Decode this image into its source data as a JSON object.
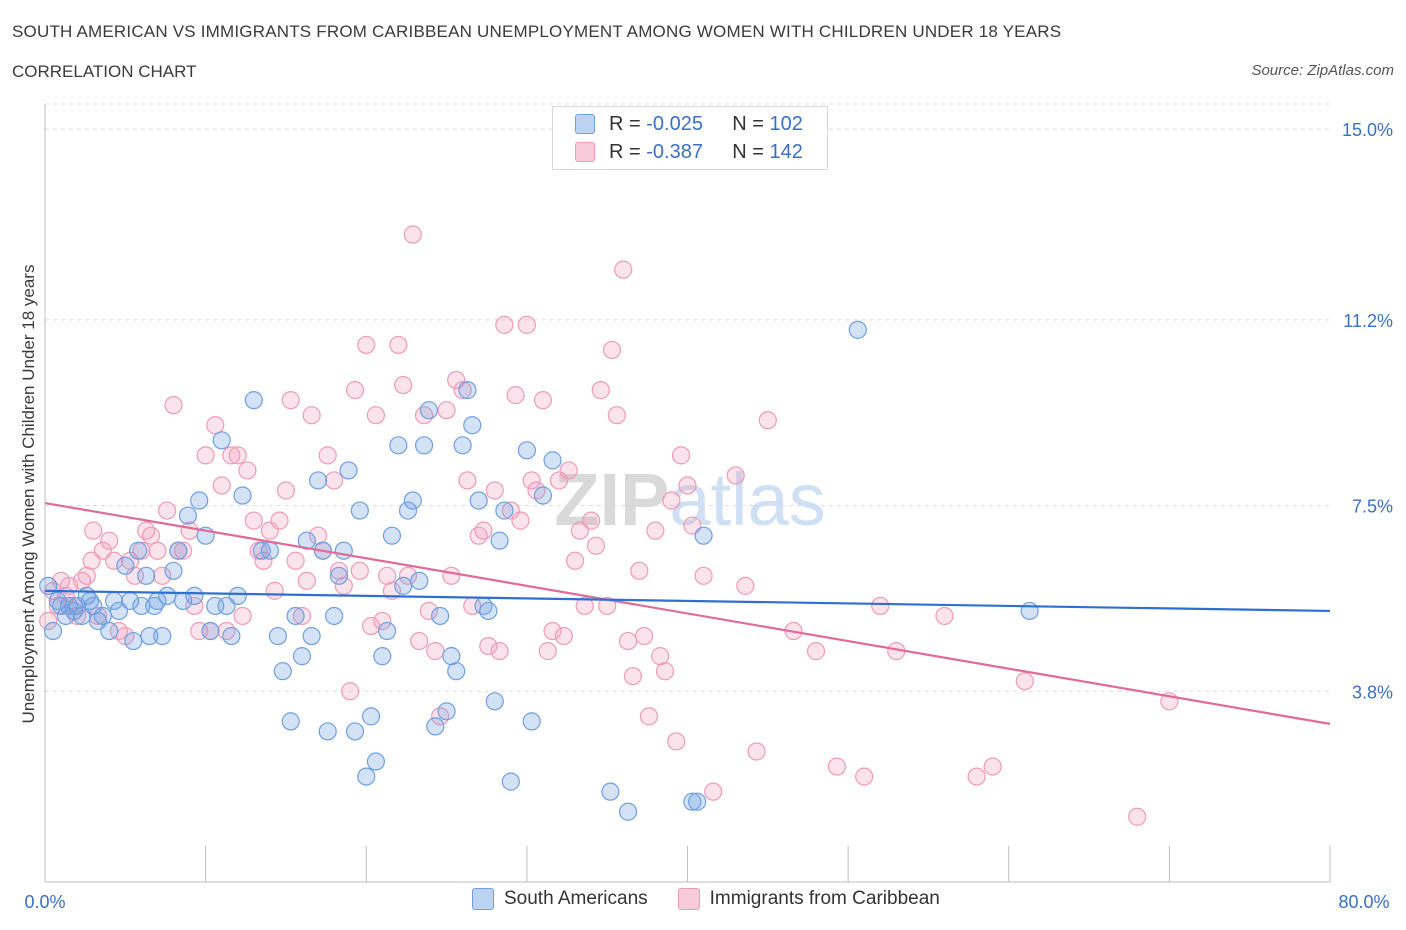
{
  "title": "SOUTH AMERICAN VS IMMIGRANTS FROM CARIBBEAN UNEMPLOYMENT AMONG WOMEN WITH CHILDREN UNDER 18 YEARS",
  "subtitle": "CORRELATION CHART",
  "source": "Source: ZipAtlas.com",
  "watermark": "ZIPatlas",
  "legend": {
    "rows": [
      {
        "r_label": "R =",
        "r_value": "-0.025",
        "n_label": "N =",
        "n_value": "102",
        "color": "#6f9fe0"
      },
      {
        "r_label": "R =",
        "r_value": "-0.387",
        "n_label": "N =",
        "n_value": "142",
        "color": "#ef9ab8"
      }
    ]
  },
  "bottom_legend": [
    "South Americans",
    "Immigrants from Caribbean"
  ],
  "chart_data": {
    "type": "scatter",
    "xlabel": "",
    "ylabel": "Unemployment Among Women with Children Under 18 years",
    "xlim": [
      0,
      80
    ],
    "ylim": [
      0,
      15.5
    ],
    "x_tick_labels": [
      "0.0%",
      "80.0%"
    ],
    "y_ticks": [
      3.8,
      7.5,
      11.2,
      15.0
    ],
    "y_tick_labels": [
      "3.8%",
      "7.5%",
      "11.2%",
      "15.0%"
    ],
    "grid": true,
    "colors": {
      "blue": "#6f9fe0",
      "pink": "#ef9ab8",
      "blue_line": "#2e6fcf",
      "pink_line": "#e06a9a",
      "tick_text": "#3a6fc4"
    },
    "series": [
      {
        "name": "South Americans",
        "color": "#6f9fe0",
        "trend": {
          "x": [
            0,
            80
          ],
          "y": [
            5.8,
            5.4
          ]
        },
        "points": [
          [
            0.2,
            5.9
          ],
          [
            0.5,
            5.0
          ],
          [
            0.8,
            5.6
          ],
          [
            1.0,
            5.5
          ],
          [
            1.3,
            5.3
          ],
          [
            1.5,
            5.5
          ],
          [
            1.8,
            5.4
          ],
          [
            2.0,
            5.5
          ],
          [
            2.3,
            5.3
          ],
          [
            2.6,
            5.7
          ],
          [
            2.8,
            5.6
          ],
          [
            3.0,
            5.5
          ],
          [
            3.3,
            5.2
          ],
          [
            3.6,
            5.3
          ],
          [
            4.0,
            5.0
          ],
          [
            4.3,
            5.6
          ],
          [
            4.6,
            5.4
          ],
          [
            5.0,
            6.3
          ],
          [
            5.3,
            5.6
          ],
          [
            5.5,
            4.8
          ],
          [
            5.8,
            6.6
          ],
          [
            6.0,
            5.5
          ],
          [
            6.3,
            6.1
          ],
          [
            6.5,
            4.9
          ],
          [
            6.8,
            5.5
          ],
          [
            7.0,
            5.6
          ],
          [
            7.3,
            4.9
          ],
          [
            7.6,
            5.7
          ],
          [
            8.0,
            6.2
          ],
          [
            8.3,
            6.6
          ],
          [
            8.6,
            5.6
          ],
          [
            8.9,
            7.3
          ],
          [
            9.3,
            5.7
          ],
          [
            9.6,
            7.6
          ],
          [
            10.0,
            6.9
          ],
          [
            10.3,
            5.0
          ],
          [
            10.6,
            5.5
          ],
          [
            11.0,
            8.8
          ],
          [
            11.3,
            5.5
          ],
          [
            11.6,
            4.9
          ],
          [
            12.0,
            5.7
          ],
          [
            12.3,
            7.7
          ],
          [
            13.0,
            9.6
          ],
          [
            13.5,
            6.6
          ],
          [
            14.0,
            6.6
          ],
          [
            14.5,
            4.9
          ],
          [
            14.8,
            4.2
          ],
          [
            15.3,
            3.2
          ],
          [
            15.6,
            5.3
          ],
          [
            16.0,
            4.5
          ],
          [
            16.3,
            6.8
          ],
          [
            16.6,
            4.9
          ],
          [
            17.0,
            8.0
          ],
          [
            17.3,
            6.6
          ],
          [
            17.6,
            3.0
          ],
          [
            18.0,
            5.3
          ],
          [
            18.3,
            6.1
          ],
          [
            18.6,
            6.6
          ],
          [
            18.9,
            8.2
          ],
          [
            19.3,
            3.0
          ],
          [
            19.6,
            7.4
          ],
          [
            20.0,
            2.1
          ],
          [
            20.3,
            3.3
          ],
          [
            20.6,
            2.4
          ],
          [
            21.0,
            4.5
          ],
          [
            21.3,
            5.0
          ],
          [
            21.6,
            6.9
          ],
          [
            22.0,
            8.7
          ],
          [
            22.3,
            5.9
          ],
          [
            22.6,
            7.4
          ],
          [
            22.9,
            7.6
          ],
          [
            23.3,
            6.0
          ],
          [
            23.6,
            8.7
          ],
          [
            23.9,
            9.4
          ],
          [
            24.3,
            3.1
          ],
          [
            24.6,
            5.3
          ],
          [
            25.0,
            3.4
          ],
          [
            25.3,
            4.5
          ],
          [
            25.6,
            4.2
          ],
          [
            26.0,
            8.7
          ],
          [
            26.3,
            9.8
          ],
          [
            26.6,
            9.1
          ],
          [
            27.0,
            7.6
          ],
          [
            27.3,
            5.5
          ],
          [
            27.6,
            5.4
          ],
          [
            28.0,
            3.6
          ],
          [
            28.3,
            6.8
          ],
          [
            28.6,
            7.4
          ],
          [
            29.0,
            2.0
          ],
          [
            30.0,
            8.6
          ],
          [
            30.3,
            3.2
          ],
          [
            31.0,
            7.7
          ],
          [
            31.6,
            8.4
          ],
          [
            35.2,
            1.8
          ],
          [
            36.3,
            1.4
          ],
          [
            40.3,
            1.6
          ],
          [
            40.6,
            1.6
          ],
          [
            41.0,
            6.9
          ],
          [
            50.6,
            11.0
          ],
          [
            61.3,
            5.4
          ]
        ]
      },
      {
        "name": "Immigrants from Caribbean",
        "color": "#ef9ab8",
        "trend": {
          "x": [
            0,
            80
          ],
          "y": [
            7.55,
            3.15
          ]
        },
        "points": [
          [
            0.2,
            5.2
          ],
          [
            0.5,
            5.8
          ],
          [
            0.8,
            5.5
          ],
          [
            1.0,
            6.0
          ],
          [
            1.3,
            5.7
          ],
          [
            1.5,
            5.9
          ],
          [
            1.8,
            5.5
          ],
          [
            2.0,
            5.3
          ],
          [
            2.3,
            6.0
          ],
          [
            2.6,
            6.1
          ],
          [
            2.9,
            6.4
          ],
          [
            3.0,
            7.0
          ],
          [
            3.3,
            5.3
          ],
          [
            3.6,
            6.6
          ],
          [
            4.0,
            6.8
          ],
          [
            4.3,
            6.4
          ],
          [
            4.6,
            5.0
          ],
          [
            5.0,
            4.9
          ],
          [
            5.3,
            6.4
          ],
          [
            5.6,
            6.1
          ],
          [
            6.0,
            6.6
          ],
          [
            6.3,
            7.0
          ],
          [
            6.6,
            6.9
          ],
          [
            7.0,
            6.6
          ],
          [
            7.3,
            6.1
          ],
          [
            7.6,
            7.4
          ],
          [
            8.0,
            9.5
          ],
          [
            8.3,
            6.6
          ],
          [
            8.6,
            6.6
          ],
          [
            9.0,
            7.0
          ],
          [
            9.3,
            5.5
          ],
          [
            9.6,
            5.0
          ],
          [
            10.0,
            8.5
          ],
          [
            10.3,
            5.0
          ],
          [
            10.6,
            9.1
          ],
          [
            11.0,
            7.9
          ],
          [
            11.3,
            5.0
          ],
          [
            11.6,
            8.5
          ],
          [
            12.0,
            8.5
          ],
          [
            12.3,
            5.3
          ],
          [
            12.6,
            8.2
          ],
          [
            13.0,
            7.2
          ],
          [
            13.3,
            6.6
          ],
          [
            13.6,
            6.4
          ],
          [
            14.0,
            7.0
          ],
          [
            14.3,
            5.8
          ],
          [
            14.6,
            7.2
          ],
          [
            15.0,
            7.8
          ],
          [
            15.3,
            9.6
          ],
          [
            15.6,
            6.4
          ],
          [
            16.0,
            5.3
          ],
          [
            16.3,
            6.0
          ],
          [
            16.6,
            9.3
          ],
          [
            17.0,
            6.9
          ],
          [
            17.3,
            6.6
          ],
          [
            17.6,
            8.5
          ],
          [
            18.0,
            8.0
          ],
          [
            18.3,
            6.2
          ],
          [
            18.6,
            5.9
          ],
          [
            19.0,
            3.8
          ],
          [
            19.3,
            9.8
          ],
          [
            19.6,
            6.2
          ],
          [
            20.0,
            10.7
          ],
          [
            20.3,
            5.1
          ],
          [
            20.6,
            9.3
          ],
          [
            21.0,
            5.2
          ],
          [
            21.3,
            6.1
          ],
          [
            21.6,
            5.8
          ],
          [
            22.0,
            10.7
          ],
          [
            22.3,
            9.9
          ],
          [
            22.6,
            6.1
          ],
          [
            22.9,
            12.9
          ],
          [
            23.3,
            4.8
          ],
          [
            23.6,
            9.3
          ],
          [
            23.9,
            5.4
          ],
          [
            24.3,
            4.6
          ],
          [
            24.6,
            3.3
          ],
          [
            25.0,
            9.4
          ],
          [
            25.3,
            6.1
          ],
          [
            25.6,
            10.0
          ],
          [
            26.0,
            9.8
          ],
          [
            26.3,
            8.0
          ],
          [
            26.6,
            5.5
          ],
          [
            27.0,
            6.9
          ],
          [
            27.3,
            7.0
          ],
          [
            27.6,
            4.7
          ],
          [
            28.0,
            7.8
          ],
          [
            28.3,
            4.6
          ],
          [
            28.6,
            11.1
          ],
          [
            29.0,
            7.4
          ],
          [
            29.3,
            9.7
          ],
          [
            29.6,
            7.2
          ],
          [
            30.0,
            11.1
          ],
          [
            30.3,
            8.0
          ],
          [
            30.6,
            7.8
          ],
          [
            31.0,
            9.6
          ],
          [
            31.3,
            4.6
          ],
          [
            31.6,
            5.0
          ],
          [
            32.0,
            8.0
          ],
          [
            32.3,
            4.9
          ],
          [
            32.6,
            8.2
          ],
          [
            33.0,
            6.4
          ],
          [
            33.3,
            7.0
          ],
          [
            33.6,
            5.5
          ],
          [
            34.0,
            7.2
          ],
          [
            34.3,
            6.7
          ],
          [
            34.6,
            9.8
          ],
          [
            35.0,
            5.5
          ],
          [
            35.3,
            10.6
          ],
          [
            35.6,
            9.3
          ],
          [
            36.0,
            12.2
          ],
          [
            36.3,
            4.8
          ],
          [
            36.6,
            4.1
          ],
          [
            37.0,
            6.2
          ],
          [
            37.3,
            4.9
          ],
          [
            37.6,
            3.3
          ],
          [
            38.0,
            7.0
          ],
          [
            38.3,
            4.5
          ],
          [
            38.6,
            4.2
          ],
          [
            39.0,
            7.6
          ],
          [
            39.3,
            2.8
          ],
          [
            39.6,
            8.5
          ],
          [
            40.0,
            7.9
          ],
          [
            40.3,
            7.1
          ],
          [
            41.0,
            6.1
          ],
          [
            41.6,
            1.8
          ],
          [
            43.0,
            8.1
          ],
          [
            43.6,
            5.9
          ],
          [
            44.3,
            2.6
          ],
          [
            45.0,
            9.2
          ],
          [
            46.6,
            5.0
          ],
          [
            48.0,
            4.6
          ],
          [
            49.3,
            2.3
          ],
          [
            51.0,
            2.1
          ],
          [
            52.0,
            5.5
          ],
          [
            53.0,
            4.6
          ],
          [
            56.0,
            5.3
          ],
          [
            58.0,
            2.1
          ],
          [
            59.0,
            2.3
          ],
          [
            61.0,
            4.0
          ],
          [
            68.0,
            1.3
          ],
          [
            70.0,
            3.6
          ]
        ]
      }
    ]
  }
}
